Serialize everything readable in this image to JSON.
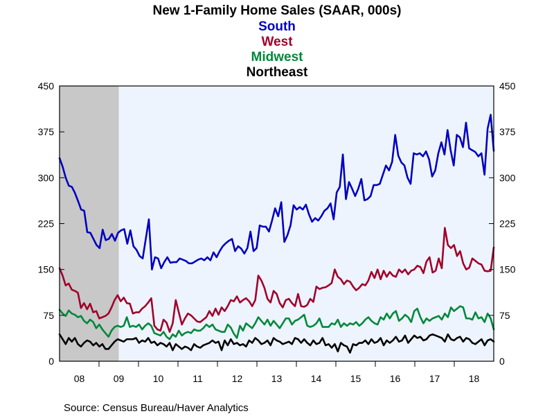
{
  "source": "Source:  Census Bureau/Haver Analytics",
  "chart_data": {
    "type": "line",
    "title": "New 1-Family Home Sales (SAAR, 000s)",
    "xlabel": "",
    "ylabel": "",
    "ylim": [
      0,
      450
    ],
    "yticks": [
      0,
      75,
      150,
      225,
      300,
      375,
      450
    ],
    "y_axes": "left-and-right",
    "x_start": 2008.0,
    "x_end": 2019.0,
    "x_tick_labels": [
      "08",
      "09",
      "10",
      "11",
      "12",
      "13",
      "14",
      "15",
      "16",
      "17",
      "18"
    ],
    "x_tick_years": [
      2008,
      2009,
      2010,
      2011,
      2012,
      2013,
      2014,
      2015,
      2016,
      2017,
      2018
    ],
    "recession": {
      "start": 2008.0,
      "end": 2009.5,
      "color": "#c8c8c8"
    },
    "plot_background": "#eef4fd",
    "legend_placement": "top-center",
    "series": [
      {
        "name": "South",
        "color": "#0000c0",
        "values": [
          332,
          318,
          300,
          287,
          285,
          275,
          262,
          248,
          246,
          211,
          210,
          200,
          190,
          185,
          215,
          198,
          200,
          208,
          197,
          210,
          214,
          216,
          192,
          214,
          188,
          182,
          172,
          168,
          200,
          232,
          150,
          170,
          168,
          152,
          162,
          170,
          161,
          162,
          162,
          168,
          166,
          164,
          160,
          160,
          163,
          166,
          168,
          165,
          170,
          165,
          178,
          170,
          180,
          188,
          193,
          197,
          200,
          180,
          188,
          184,
          176,
          185,
          212,
          180,
          185,
          222,
          220,
          220,
          212,
          230,
          250,
          237,
          260,
          195,
          206,
          222,
          255,
          248,
          252,
          248,
          256,
          240,
          228,
          234,
          230,
          237,
          246,
          250,
          258,
          232,
          276,
          285,
          338,
          265,
          293,
          282,
          270,
          282,
          298,
          263,
          265,
          270,
          288,
          288,
          290,
          305,
          320,
          312,
          326,
          370,
          336,
          325,
          320,
          300,
          290,
          340,
          338,
          340,
          335,
          343,
          330,
          302,
          312,
          340,
          358,
          338,
          378,
          345,
          320,
          370,
          366,
          350,
          390,
          348,
          345,
          342,
          335,
          340,
          305,
          380,
          403,
          344
        ]
      },
      {
        "name": "West",
        "color": "#a0002a",
        "values": [
          152,
          140,
          124,
          127,
          117,
          115,
          112,
          87,
          95,
          85,
          94,
          80,
          82,
          70,
          72,
          74,
          78,
          88,
          100,
          108,
          98,
          104,
          95,
          94,
          78,
          80,
          80,
          86,
          90,
          96,
          103,
          58,
          52,
          50,
          68,
          63,
          48,
          62,
          100,
          80,
          60,
          70,
          78,
          75,
          70,
          65,
          64,
          68,
          72,
          82,
          74,
          86,
          76,
          88,
          82,
          90,
          100,
          98,
          106,
          96,
          100,
          103,
          98,
          90,
          100,
          140,
          132,
          120,
          102,
          96,
          115,
          110,
          95,
          88,
          100,
          102,
          95,
          90,
          110,
          90,
          89,
          92,
          102,
          97,
          122,
          118,
          120,
          121,
          124,
          128,
          150,
          138,
          134,
          126,
          132,
          130,
          122,
          116,
          120,
          126,
          124,
          132,
          146,
          136,
          150,
          134,
          148,
          138,
          146,
          140,
          138,
          150,
          145,
          150,
          142,
          148,
          150,
          156,
          154,
          144,
          163,
          170,
          145,
          148,
          168,
          152,
          218,
          190,
          185,
          190,
          172,
          180,
          160,
          150,
          153,
          168,
          164,
          160,
          158,
          148,
          147,
          148,
          186
        ]
      },
      {
        "name": "Midwest",
        "color": "#00883a",
        "values": [
          84,
          78,
          74,
          83,
          78,
          76,
          72,
          74,
          66,
          62,
          68,
          64,
          54,
          60,
          52,
          46,
          40,
          50,
          56,
          58,
          56,
          58,
          72,
          56,
          58,
          56,
          60,
          52,
          58,
          62,
          58,
          46,
          44,
          42,
          48,
          40,
          36,
          44,
          40,
          50,
          42,
          46,
          48,
          46,
          52,
          50,
          50,
          54,
          60,
          56,
          60,
          52,
          50,
          48,
          48,
          60,
          55,
          45,
          38,
          58,
          50,
          62,
          58,
          54,
          62,
          72,
          66,
          60,
          68,
          58,
          66,
          60,
          54,
          62,
          70,
          70,
          60,
          66,
          68,
          72,
          76,
          58,
          56,
          58,
          62,
          70,
          56,
          56,
          56,
          62,
          60,
          68,
          56,
          62,
          58,
          62,
          60,
          64,
          58,
          62,
          68,
          72,
          66,
          62,
          60,
          72,
          68,
          78,
          70,
          78,
          82,
          66,
          70,
          76,
          72,
          64,
          82,
          86,
          72,
          62,
          70,
          66,
          70,
          72,
          74,
          68,
          78,
          72,
          88,
          82,
          86,
          90,
          88,
          70,
          70,
          68,
          80,
          70,
          72,
          64,
          78,
          70,
          52
        ]
      },
      {
        "name": "Northeast",
        "color": "#000000",
        "values": [
          44,
          36,
          28,
          38,
          32,
          38,
          28,
          24,
          30,
          34,
          32,
          26,
          30,
          24,
          28,
          20,
          20,
          26,
          32,
          36,
          34,
          32,
          36,
          36,
          36,
          38,
          30,
          34,
          32,
          38,
          30,
          32,
          26,
          30,
          28,
          24,
          30,
          18,
          28,
          24,
          20,
          24,
          22,
          18,
          28,
          24,
          22,
          26,
          28,
          30,
          34,
          30,
          32,
          18,
          34,
          26,
          36,
          28,
          30,
          26,
          28,
          24,
          34,
          30,
          38,
          34,
          28,
          30,
          34,
          26,
          38,
          34,
          32,
          28,
          30,
          32,
          28,
          38,
          36,
          30,
          36,
          30,
          26,
          34,
          28,
          30,
          38,
          26,
          28,
          22,
          28,
          16,
          30,
          26,
          24,
          14,
          28,
          26,
          30,
          30,
          34,
          28,
          36,
          30,
          32,
          38,
          26,
          34,
          30,
          34,
          40,
          32,
          34,
          42,
          30,
          36,
          42,
          38,
          40,
          34,
          36,
          42,
          44,
          42,
          40,
          38,
          32,
          44,
          36,
          34,
          38,
          40,
          32,
          38,
          36,
          30,
          28,
          32,
          36,
          26,
          34,
          36,
          32
        ]
      }
    ]
  }
}
